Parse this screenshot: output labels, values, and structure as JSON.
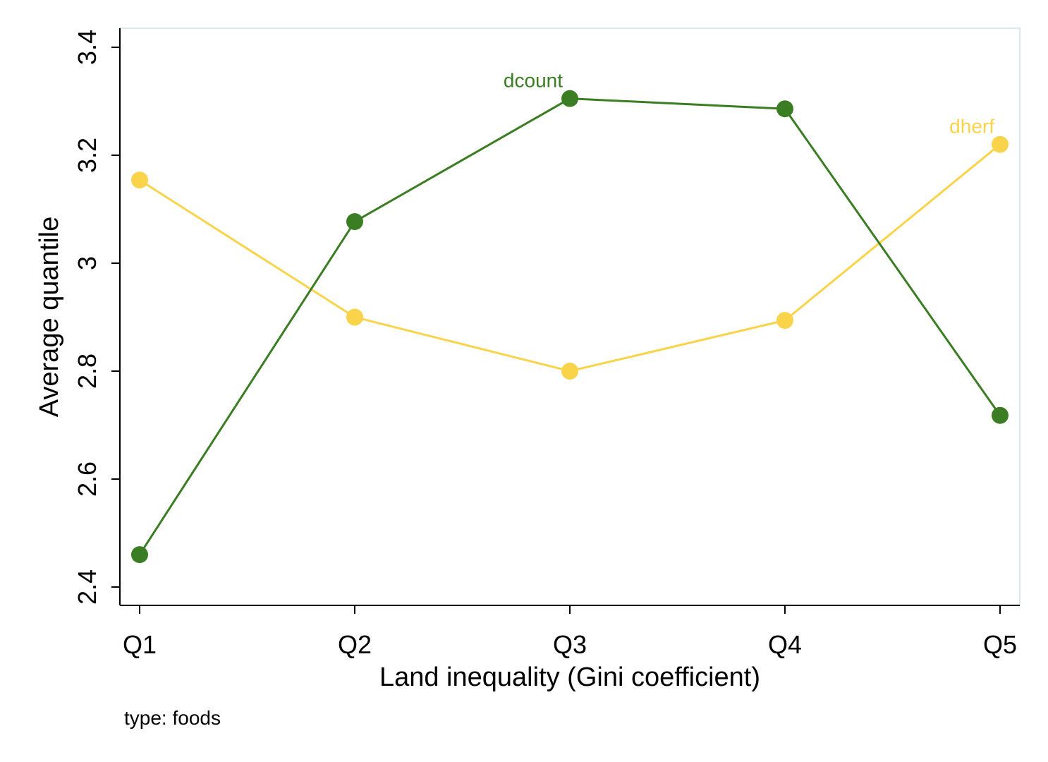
{
  "chart_data": {
    "type": "line",
    "categories": [
      "Q1",
      "Q2",
      "Q3",
      "Q4",
      "Q5"
    ],
    "series": [
      {
        "name": "dcount",
        "color": "#3a7d22",
        "values": [
          2.46,
          3.077,
          3.305,
          3.286,
          2.718
        ]
      },
      {
        "name": "dherf",
        "color": "#f9d34a",
        "values": [
          3.154,
          2.9,
          2.8,
          2.894,
          3.22
        ]
      }
    ],
    "xlabel": "Land inequality (Gini coefficient)",
    "ylabel": "Average quantile",
    "ylim": [
      2.4,
      3.4
    ],
    "yticks": [
      2.4,
      2.6,
      2.8,
      3.0,
      3.2,
      3.4
    ],
    "ytick_labels": [
      "2.4",
      "2.6",
      "2.8",
      "3",
      "3.2",
      "3.4"
    ],
    "note": "type: foods",
    "grid": false,
    "series_labels": "inline at series"
  }
}
